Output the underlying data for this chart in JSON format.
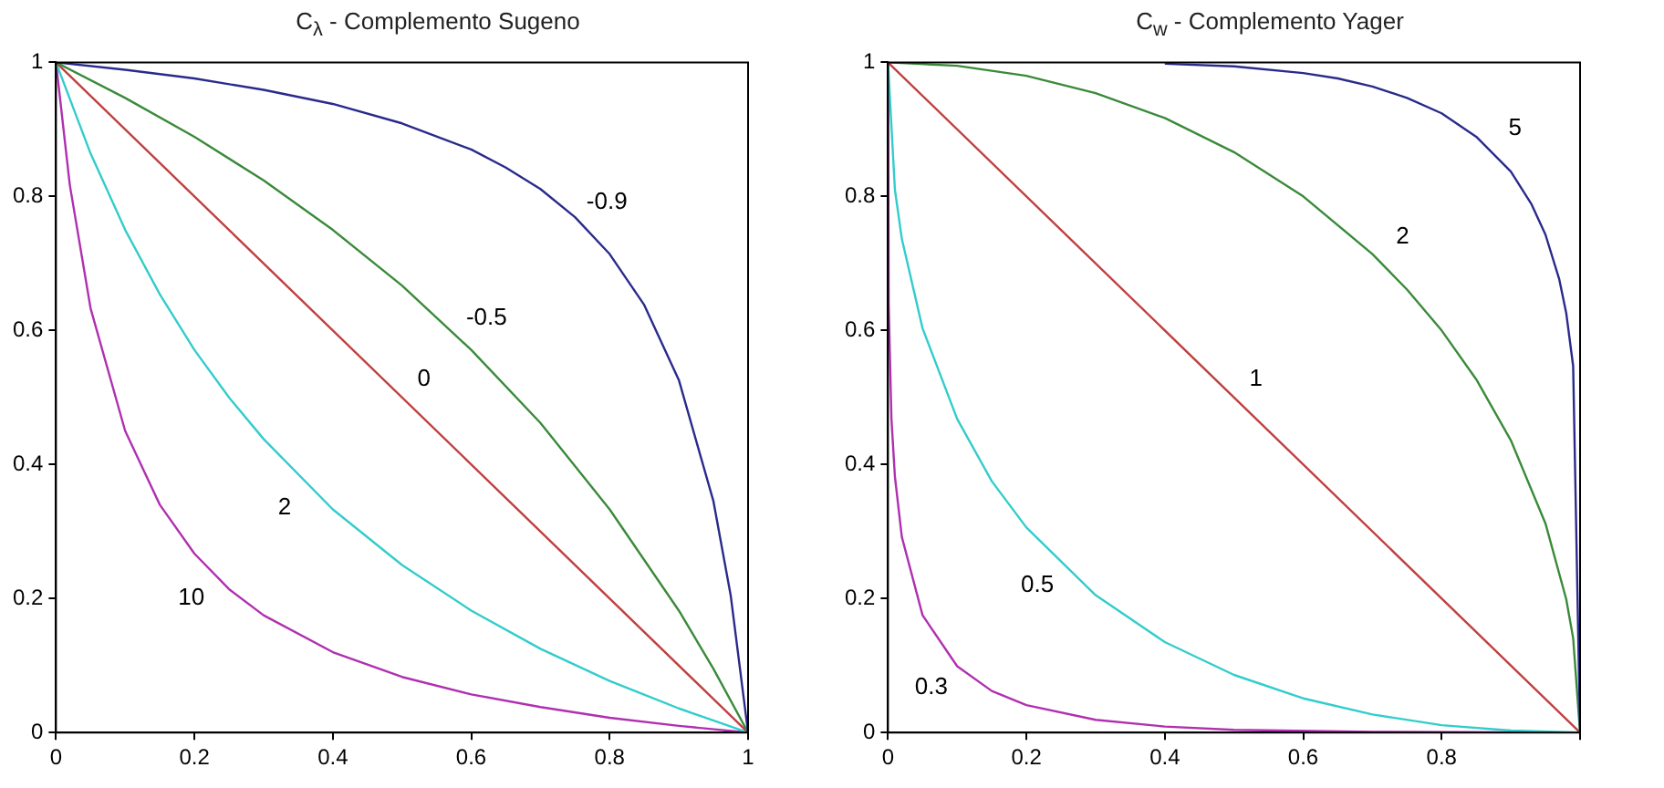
{
  "chart_data": [
    {
      "type": "line",
      "title": "C$_{λ}$ - Complemento Sugeno",
      "xlim": [
        0,
        1
      ],
      "ylim": [
        0,
        1
      ],
      "xticks": [
        0,
        0.2,
        0.4,
        0.6,
        0.8,
        1
      ],
      "yticks": [
        0,
        0.2,
        0.4,
        0.6,
        0.8,
        1
      ],
      "grid": false,
      "legend": false,
      "marker": "none",
      "line_style": "solid",
      "series": [
        {
          "name": "-0.9",
          "color": "#2a2a8c",
          "x": [
            0,
            0.1,
            0.2,
            0.3,
            0.4,
            0.5,
            0.6,
            0.65,
            0.7,
            0.75,
            0.8,
            0.85,
            0.9,
            0.95,
            0.975,
            1
          ],
          "values": [
            1,
            0.989,
            0.976,
            0.959,
            0.938,
            0.909,
            0.87,
            0.843,
            0.811,
            0.769,
            0.714,
            0.638,
            0.526,
            0.345,
            0.204,
            0
          ]
        },
        {
          "name": "-0.5",
          "color": "#3a8a3a",
          "x": [
            0,
            0.1,
            0.2,
            0.3,
            0.4,
            0.5,
            0.6,
            0.7,
            0.8,
            0.9,
            0.95,
            1
          ],
          "values": [
            1,
            0.947,
            0.889,
            0.824,
            0.75,
            0.667,
            0.571,
            0.462,
            0.333,
            0.182,
            0.095,
            0
          ]
        },
        {
          "name": "0",
          "color": "#c04040",
          "x": [
            0,
            1
          ],
          "values": [
            1,
            0
          ]
        },
        {
          "name": "2",
          "color": "#33cccc",
          "x": [
            0,
            0.05,
            0.1,
            0.15,
            0.2,
            0.25,
            0.3,
            0.4,
            0.5,
            0.6,
            0.7,
            0.8,
            0.9,
            1
          ],
          "values": [
            1,
            0.864,
            0.75,
            0.654,
            0.571,
            0.5,
            0.438,
            0.333,
            0.25,
            0.182,
            0.125,
            0.077,
            0.036,
            0
          ]
        },
        {
          "name": "10",
          "color": "#b030b0",
          "x": [
            0,
            0.02,
            0.05,
            0.1,
            0.15,
            0.2,
            0.25,
            0.3,
            0.4,
            0.5,
            0.6,
            0.7,
            0.8,
            0.9,
            1
          ],
          "values": [
            1,
            0.817,
            0.633,
            0.45,
            0.34,
            0.267,
            0.214,
            0.175,
            0.12,
            0.083,
            0.057,
            0.038,
            0.022,
            0.01,
            0
          ]
        }
      ]
    },
    {
      "type": "line",
      "title": "C$_{w}$ - Complemento Yager",
      "xlim": [
        0,
        1
      ],
      "ylim": [
        0,
        1
      ],
      "xticks": [
        0,
        0.2,
        0.4,
        0.6,
        0.8,
        {
          "value": 1,
          "label": null
        }
      ],
      "yticks": [
        0,
        0.2,
        0.4,
        0.6,
        0.8,
        1
      ],
      "grid": false,
      "legend": false,
      "marker": "none",
      "line_style": "solid",
      "series": [
        {
          "name": "5",
          "color": "#2a2a8c",
          "x": [
            0.4,
            0.5,
            0.6,
            0.65,
            0.7,
            0.75,
            0.8,
            0.85,
            0.9,
            0.93,
            0.95,
            0.97,
            0.98,
            0.99,
            1
          ],
          "values": [
            0.998,
            0.994,
            0.984,
            0.976,
            0.964,
            0.947,
            0.924,
            0.889,
            0.837,
            0.788,
            0.743,
            0.676,
            0.626,
            0.547,
            0
          ]
        },
        {
          "name": "2",
          "color": "#3a8a3a",
          "x": [
            0,
            0.1,
            0.2,
            0.3,
            0.4,
            0.5,
            0.6,
            0.7,
            0.75,
            0.8,
            0.85,
            0.9,
            0.95,
            0.98,
            0.99,
            1
          ],
          "values": [
            1,
            0.995,
            0.98,
            0.954,
            0.917,
            0.866,
            0.8,
            0.714,
            0.661,
            0.6,
            0.527,
            0.436,
            0.312,
            0.199,
            0.141,
            0
          ]
        },
        {
          "name": "1",
          "color": "#c04040",
          "x": [
            0,
            1
          ],
          "values": [
            1,
            0
          ]
        },
        {
          "name": "0.5",
          "color": "#33cccc",
          "x": [
            0,
            0.01,
            0.02,
            0.05,
            0.1,
            0.15,
            0.2,
            0.3,
            0.4,
            0.5,
            0.6,
            0.7,
            0.8,
            0.9,
            1
          ],
          "values": [
            1,
            0.81,
            0.737,
            0.603,
            0.468,
            0.375,
            0.306,
            0.205,
            0.135,
            0.086,
            0.051,
            0.027,
            0.011,
            0.003,
            0
          ]
        },
        {
          "name": "0.3",
          "color": "#b030b0",
          "x": [
            0,
            0.001,
            0.005,
            0.01,
            0.02,
            0.05,
            0.1,
            0.15,
            0.2,
            0.3,
            0.4,
            0.5,
            0.7,
            1
          ],
          "values": [
            1,
            0.638,
            0.468,
            0.382,
            0.292,
            0.175,
            0.099,
            0.062,
            0.041,
            0.019,
            0.009,
            0.004,
            0.001,
            0
          ]
        }
      ]
    }
  ]
}
